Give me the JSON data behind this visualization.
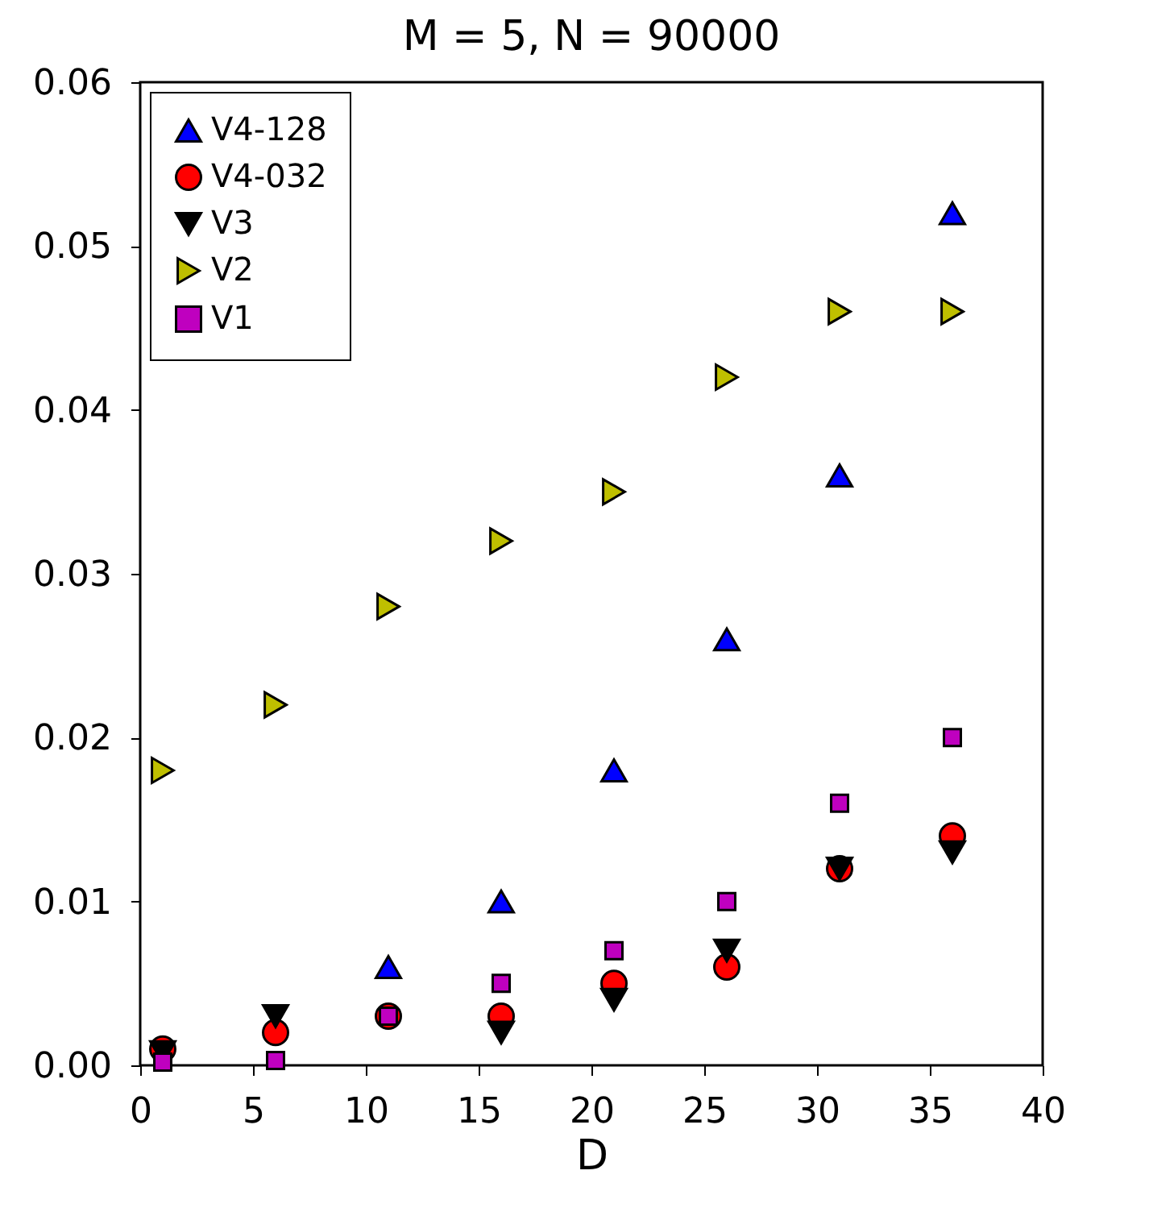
{
  "chart_data": {
    "type": "scatter",
    "title": "M = 5, N = 90000",
    "xlabel": "D",
    "x": [
      1,
      6,
      11,
      16,
      21,
      26,
      31,
      36
    ],
    "series": [
      {
        "name": "V4-128",
        "color": "#0000ff",
        "marker": "triangle",
        "values": [
          null,
          null,
          0.006,
          0.01,
          0.018,
          0.026,
          0.036,
          0.052
        ]
      },
      {
        "name": "V4-032",
        "color": "#ff0000",
        "marker": "circle",
        "values": [
          0.001,
          0.002,
          0.003,
          0.003,
          0.005,
          0.006,
          0.012,
          0.014
        ]
      },
      {
        "name": "V3",
        "color": "#000000",
        "marker": "triangle-down",
        "values": [
          0.0008,
          0.003,
          null,
          0.002,
          0.004,
          0.007,
          0.012,
          0.013
        ]
      },
      {
        "name": "V2",
        "color": "#bfbf00",
        "marker": "triangle-right",
        "values": [
          0.018,
          0.022,
          0.028,
          0.032,
          0.035,
          0.042,
          0.046,
          0.046
        ]
      },
      {
        "name": "V1",
        "color": "#bf00bf",
        "marker": "square",
        "values": [
          0.0002,
          0.0003,
          0.003,
          0.005,
          0.007,
          0.01,
          0.016,
          0.02
        ]
      }
    ],
    "xlim": [
      0,
      40
    ],
    "xticks": [
      0,
      5,
      10,
      15,
      20,
      25,
      30,
      35,
      40
    ],
    "ylim": [
      0,
      0.06
    ],
    "yticks": [
      {
        "value": 0,
        "label": "0.00"
      },
      {
        "value": 0.01,
        "label": "0.01"
      },
      {
        "value": 0.02,
        "label": "0.02"
      },
      {
        "value": 0.03,
        "label": "0.03"
      },
      {
        "value": 0.04,
        "label": "0.04"
      },
      {
        "value": 0.05,
        "label": "0.05"
      },
      {
        "value": 0.06,
        "label": "0.06"
      }
    ],
    "grid": false,
    "legend": "top left"
  }
}
